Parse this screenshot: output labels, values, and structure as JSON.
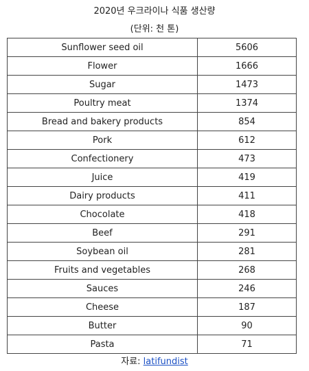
{
  "title": "2020년 우크라이나 식품 생산량",
  "subtitle": "(단위: 천 톤)",
  "rows": [
    {
      "product": "Sunflower seed oil",
      "value": "5606"
    },
    {
      "product": "Flower",
      "value": "1666"
    },
    {
      "product": "Sugar",
      "value": "1473"
    },
    {
      "product": "Poultry meat",
      "value": "1374"
    },
    {
      "product": "Bread and bakery products",
      "value": "854"
    },
    {
      "product": "Pork",
      "value": "612"
    },
    {
      "product": "Confectionery",
      "value": "473"
    },
    {
      "product": "Juice",
      "value": "419"
    },
    {
      "product": "Dairy products",
      "value": "411"
    },
    {
      "product": "Chocolate",
      "value": "418"
    },
    {
      "product": "Beef",
      "value": "291"
    },
    {
      "product": "Soybean oil",
      "value": "281"
    },
    {
      "product": "Fruits and vegetables",
      "value": "268"
    },
    {
      "product": "Sauces",
      "value": "246"
    },
    {
      "product": "Cheese",
      "value": "187"
    },
    {
      "product": "Butter",
      "value": "90"
    },
    {
      "product": "Pasta",
      "value": "71"
    }
  ],
  "source": {
    "label": "자료: ",
    "link_text": "latifundist",
    "link_color": "#1a4fc4"
  }
}
